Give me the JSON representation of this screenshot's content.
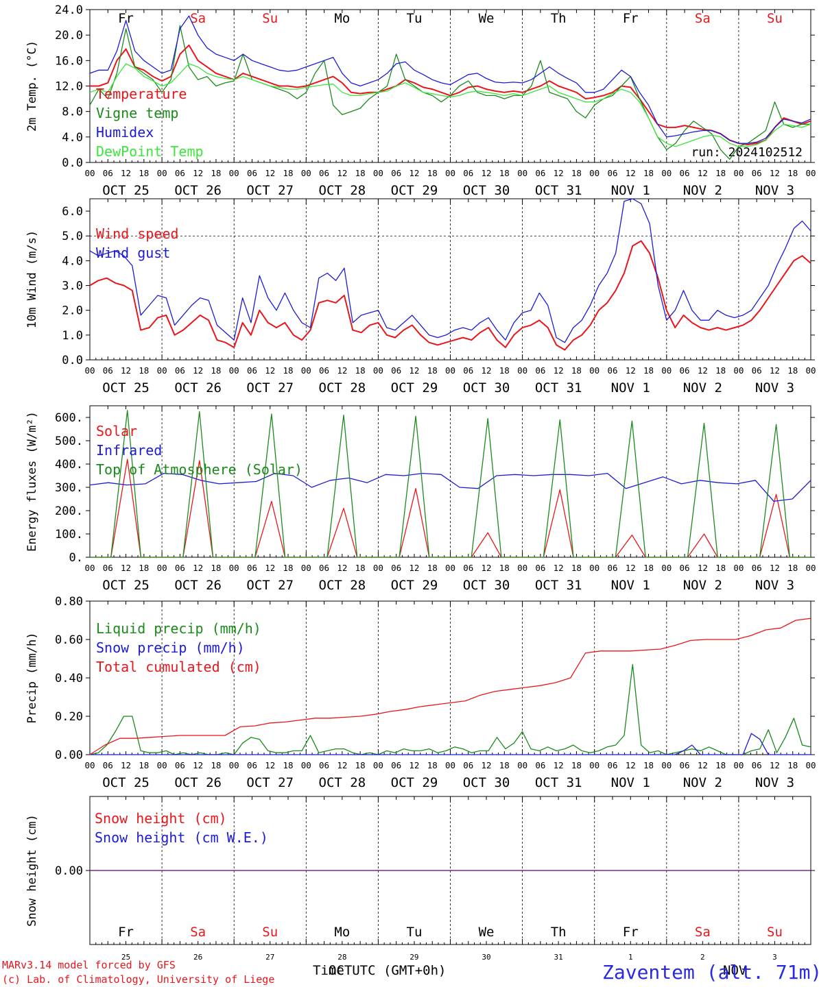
{
  "colors": {
    "red": "#e8161b",
    "green": "#1a8a1a",
    "blue": "#1b1bd6",
    "lightgreen": "#3ae63a",
    "purple": "#7a1a8a",
    "weekday": "#000000",
    "weekend": "#e8161b",
    "station": "#2a2ae0"
  },
  "days": {
    "weekday_names": [
      "Fr",
      "Sa",
      "Su",
      "Mo",
      "Tu",
      "We",
      "Th",
      "Fr",
      "Sa",
      "Su"
    ],
    "weekend_flags": [
      false,
      true,
      true,
      false,
      false,
      false,
      false,
      false,
      true,
      true
    ],
    "date_labels": [
      "OCT 25",
      "OCT 26",
      "OCT 27",
      "OCT 28",
      "OCT 29",
      "OCT 30",
      "OCT 31",
      "NOV  1",
      "NOV  2",
      "NOV  3"
    ],
    "day_numbers": [
      "25",
      "26",
      "27",
      "28",
      "29",
      "30",
      "31",
      "1",
      "2",
      "3"
    ],
    "hour_ticks": [
      "00",
      "06",
      "12",
      "18"
    ],
    "hour_end": "00"
  },
  "run_label": "run: 2024102512",
  "footer": {
    "model_line1": "MARv3.14 model forced by GFS",
    "model_line2": "(c) Lab. of Climatology, University of Liege",
    "time_axis": "Time UTC (GMT+0h)",
    "month_left": "OCT",
    "month_right": "NOV",
    "station": "Zaventem (alt. 71m)"
  },
  "chart_data": [
    {
      "type": "line",
      "ylabel": "2m Temp. (°C)",
      "ylim": [
        0,
        24
      ],
      "yticks": [
        "0.0",
        "4.0",
        "8.0",
        "12.0",
        "16.0",
        "20.0",
        "24.0"
      ],
      "legend": [
        "Temperature",
        "Vigne temp",
        "Humidex",
        "DewPoint Temp"
      ],
      "series": [
        {
          "name": "Temperature",
          "color": "red",
          "values": [
            12,
            12,
            12.5,
            16,
            17.8,
            15,
            14.5,
            13.5,
            12.8,
            13.5,
            17,
            18.4,
            16,
            15,
            14,
            13.5,
            13,
            14,
            13.5,
            13,
            12.5,
            12,
            12,
            11.8,
            12,
            12.5,
            13,
            13.5,
            12.5,
            11,
            10.8,
            11,
            11,
            11.5,
            12,
            13,
            12.5,
            11.8,
            11.5,
            11,
            10.5,
            11,
            11.8,
            12,
            11.5,
            11.2,
            11,
            11.2,
            11,
            11.5,
            12,
            12.8,
            12,
            11.5,
            11,
            10,
            10.2,
            10.5,
            11,
            12,
            11.8,
            10,
            8,
            6,
            5.5,
            5.5,
            5.8,
            5.5,
            5.2,
            5,
            4.5,
            3.5,
            3,
            2.8,
            3,
            3.5,
            5.5,
            7,
            6.5,
            6,
            6.5
          ]
        },
        {
          "name": "Vigne temp",
          "color": "green",
          "values": [
            9,
            11.5,
            10,
            14,
            21,
            15,
            14,
            13,
            11,
            13,
            21.5,
            15,
            13,
            13.5,
            12,
            12.5,
            12.8,
            17,
            13,
            12.5,
            12,
            11.5,
            11,
            10,
            11,
            14,
            16,
            9,
            7.5,
            8,
            8.5,
            10,
            11,
            12,
            17,
            13,
            12,
            11,
            10.5,
            9.5,
            10.5,
            12,
            12.8,
            11,
            10.5,
            10.5,
            10,
            10.5,
            10.5,
            12,
            16,
            11,
            10.5,
            10,
            8,
            7,
            9,
            10,
            10.5,
            12,
            13.5,
            10,
            7,
            4,
            2,
            3,
            5,
            6.5,
            5.5,
            4.5,
            2,
            0.5,
            2.5,
            3,
            4,
            5,
            9.5,
            6,
            5.5,
            6,
            6
          ]
        },
        {
          "name": "Humidex",
          "color": "blue",
          "values": [
            14,
            14.5,
            14.5,
            17.5,
            22.3,
            17.5,
            16,
            15,
            14,
            14.5,
            21,
            23,
            20,
            18,
            17,
            16.5,
            16,
            17,
            16,
            15.5,
            15,
            14.5,
            14.3,
            14.5,
            15,
            15.5,
            16,
            16.5,
            14,
            12.5,
            12,
            12.5,
            13,
            14,
            15.5,
            15.8,
            14.5,
            13.8,
            13,
            12.5,
            12.2,
            13,
            13.8,
            14,
            13.2,
            12.6,
            12.5,
            12.6,
            12.5,
            13,
            14,
            15,
            14,
            13.2,
            12.5,
            11,
            11,
            11.5,
            13,
            14.5,
            13.5,
            11,
            9,
            6,
            4,
            4.2,
            4.5,
            4.8,
            5,
            5,
            4.5,
            3.5,
            3,
            3,
            3.2,
            3.8,
            5.5,
            6.8,
            6.5,
            6.2,
            6.8
          ]
        },
        {
          "name": "DewPoint Temp",
          "color": "lightgreen",
          "values": [
            11,
            11.5,
            11,
            13.5,
            15.5,
            14.8,
            13.5,
            12.8,
            12,
            12.5,
            14,
            15.5,
            15,
            14,
            13.5,
            13.2,
            13,
            13.5,
            13,
            12.5,
            12,
            11.8,
            11.5,
            11.5,
            11.8,
            12,
            12.2,
            12.3,
            11,
            10.5,
            10.5,
            10.8,
            11,
            11.2,
            12,
            12.5,
            11.8,
            11,
            10.8,
            10.5,
            10.3,
            10.5,
            11,
            11.2,
            11,
            10.8,
            10.5,
            10.8,
            10.5,
            11,
            11.5,
            12,
            11,
            10.5,
            10,
            9.5,
            9.5,
            10,
            10.8,
            11.5,
            11,
            9.5,
            7,
            4,
            3,
            2.5,
            3,
            3.5,
            4,
            4.3,
            4,
            3,
            2.5,
            2.5,
            2.8,
            3.5,
            5,
            6,
            5.8,
            5.5,
            6
          ]
        }
      ]
    },
    {
      "type": "line",
      "ylabel": "10m Wind (m/s)",
      "ylim": [
        0,
        6.5
      ],
      "yticks": [
        "0.0",
        "1.0",
        "2.0",
        "3.0",
        "4.0",
        "5.0",
        "6.0"
      ],
      "refline": 5.0,
      "legend": [
        "Wind speed",
        "Wind gust"
      ],
      "series": [
        {
          "name": "Wind speed",
          "color": "red",
          "values": [
            3,
            3.2,
            3.3,
            3.1,
            3,
            2.8,
            1.2,
            1.3,
            1.7,
            1.8,
            1,
            1.2,
            1.5,
            1.8,
            1.6,
            0.8,
            0.7,
            0.5,
            1.5,
            1,
            2,
            1.5,
            1.3,
            1.5,
            1,
            0.8,
            1.2,
            2.3,
            2.4,
            2.3,
            2.6,
            1.2,
            1.1,
            1.4,
            1.5,
            1,
            0.9,
            1.2,
            1.4,
            1,
            0.7,
            0.6,
            0.7,
            0.8,
            0.9,
            0.8,
            1.1,
            1.3,
            0.8,
            0.5,
            1,
            1.3,
            1.4,
            1.6,
            1.3,
            0.6,
            0.4,
            0.8,
            1,
            1.4,
            2,
            2.3,
            2.8,
            3.5,
            4.6,
            4.8,
            4.3,
            3.3,
            2,
            1.3,
            1.8,
            1.5,
            1.3,
            1.2,
            1.3,
            1.2,
            1.3,
            1.4,
            1.6,
            2,
            2.5,
            3,
            3.5,
            4,
            4.2,
            3.9
          ]
        },
        {
          "name": "Wind gust",
          "color": "blue",
          "values": [
            4.4,
            4.2,
            4.3,
            4.4,
            4.2,
            3.8,
            1.8,
            2.2,
            2.6,
            2.5,
            1.4,
            1.8,
            2.2,
            2.5,
            2.4,
            1.4,
            1.1,
            0.8,
            2.5,
            1.5,
            3.4,
            2.5,
            2,
            2.7,
            2,
            1.5,
            1.3,
            3.3,
            3.5,
            3.2,
            3.7,
            1.5,
            1.8,
            1.9,
            2,
            1.3,
            1.2,
            1.5,
            1.8,
            1.4,
            1,
            0.9,
            1,
            1.2,
            1.3,
            1.2,
            1.5,
            1.7,
            1.2,
            0.8,
            1.5,
            1.9,
            2,
            2.7,
            2.2,
            0.9,
            0.7,
            1.3,
            1.6,
            2.2,
            3,
            3.5,
            4.3,
            6.4,
            6.5,
            6.3,
            5.5,
            3,
            1.6,
            2,
            2.8,
            2,
            1.6,
            1.6,
            2,
            1.8,
            1.7,
            1.8,
            2,
            2.5,
            3,
            3.8,
            4.5,
            5.3,
            5.6,
            5.2
          ]
        }
      ]
    },
    {
      "type": "line",
      "ylabel": "Energy fluxes (W/m²)",
      "ylim": [
        0,
        650
      ],
      "yticks": [
        "0.",
        "100.",
        "200.",
        "300.",
        "400.",
        "500.",
        "600."
      ],
      "legend": [
        "Solar",
        "Infrared",
        "Top of Atmosphere (Solar)"
      ],
      "series": [
        {
          "name": "Solar",
          "color": "red",
          "daily_peaks": [
            420,
            415,
            240,
            210,
            295,
            105,
            290,
            95,
            100,
            270
          ]
        },
        {
          "name": "Infrared",
          "color": "blue",
          "values": [
            310,
            320,
            310,
            315,
            360,
            355,
            330,
            315,
            320,
            325,
            360,
            350,
            300,
            330,
            340,
            320,
            355,
            350,
            360,
            355,
            300,
            295,
            350,
            355,
            350,
            355,
            355,
            350,
            360,
            295,
            320,
            345,
            315,
            330,
            320,
            315,
            330,
            240,
            250,
            330
          ]
        },
        {
          "name": "Top of Atmosphere (Solar)",
          "color": "green",
          "daily_peaks": [
            630,
            625,
            615,
            610,
            605,
            595,
            590,
            585,
            575,
            570
          ]
        }
      ]
    },
    {
      "type": "line",
      "ylabel": "Precip (mm/h)",
      "ylim": [
        0,
        0.8
      ],
      "yticks": [
        "0.00",
        "0.20",
        "0.40",
        "0.60",
        "0.80"
      ],
      "legend": [
        "Liquid precip (mm/h)",
        "Snow precip (mm/h)",
        "Total cumulated (cm)"
      ],
      "series": [
        {
          "name": "Liquid precip (mm/h)",
          "color": "green",
          "values": [
            0,
            0.01,
            0.05,
            0.12,
            0.2,
            0.2,
            0.02,
            0.01,
            0.01,
            0.02,
            0,
            0.01,
            0,
            0.01,
            0,
            0,
            0.01,
            0,
            0.06,
            0.09,
            0.08,
            0.02,
            0.01,
            0.01,
            0.02,
            0.02,
            0.1,
            0.01,
            0.02,
            0.03,
            0.03,
            0.01,
            0,
            0.01,
            0,
            0.02,
            0.01,
            0.03,
            0.02,
            0.02,
            0.03,
            0.01,
            0.02,
            0.04,
            0.03,
            0.01,
            0.02,
            0.02,
            0.09,
            0.03,
            0.06,
            0.12,
            0.03,
            0.02,
            0.04,
            0.02,
            0.03,
            0.05,
            0.02,
            0.01,
            0.02,
            0.04,
            0.05,
            0.1,
            0.47,
            0.05,
            0.01,
            0.02,
            0,
            0.01,
            0.02,
            0.03,
            0.02,
            0.04,
            0.02,
            0,
            0,
            0,
            0.02,
            0.03,
            0.13,
            0.01,
            0.09,
            0.19,
            0.05,
            0.04
          ]
        },
        {
          "name": "Snow precip (mm/h)",
          "color": "blue",
          "values": [
            0,
            0,
            0,
            0,
            0,
            0,
            0,
            0,
            0,
            0,
            0,
            0,
            0,
            0,
            0,
            0,
            0,
            0,
            0,
            0,
            0,
            0,
            0,
            0,
            0,
            0,
            0,
            0,
            0,
            0,
            0,
            0,
            0,
            0,
            0,
            0,
            0,
            0,
            0,
            0,
            0,
            0,
            0,
            0,
            0,
            0,
            0,
            0,
            0,
            0,
            0,
            0,
            0,
            0,
            0,
            0,
            0,
            0,
            0,
            0,
            0,
            0,
            0,
            0,
            0,
            0,
            0,
            0,
            0,
            0,
            0.02,
            0.05,
            0,
            0,
            0,
            0,
            0,
            0,
            0.11,
            0.08,
            0,
            0,
            0,
            0,
            0,
            0
          ]
        },
        {
          "name": "Total cumulated (cm)",
          "color": "red",
          "values": [
            0,
            0.05,
            0.085,
            0.085,
            0.09,
            0.095,
            0.1,
            0.1,
            0.1,
            0.1,
            0.145,
            0.15,
            0.165,
            0.17,
            0.18,
            0.19,
            0.19,
            0.195,
            0.2,
            0.21,
            0.225,
            0.235,
            0.25,
            0.26,
            0.27,
            0.28,
            0.31,
            0.33,
            0.34,
            0.35,
            0.36,
            0.375,
            0.4,
            0.53,
            0.54,
            0.54,
            0.54,
            0.545,
            0.55,
            0.57,
            0.595,
            0.6,
            0.6,
            0.6,
            0.62,
            0.65,
            0.66,
            0.7,
            0.71
          ]
        }
      ]
    },
    {
      "type": "line",
      "ylabel": "Snow height (cm)",
      "ylim": [
        -1,
        1
      ],
      "yticks": [
        "0.00"
      ],
      "legend": [
        "Snow height (cm)",
        "Snow height (cm W.E.)"
      ],
      "series": [
        {
          "name": "Snow height (cm)",
          "color": "red",
          "values": [
            0,
            0
          ]
        },
        {
          "name": "Snow height (cm W.E.)",
          "color": "blue",
          "values": [
            0,
            0
          ]
        }
      ]
    }
  ]
}
